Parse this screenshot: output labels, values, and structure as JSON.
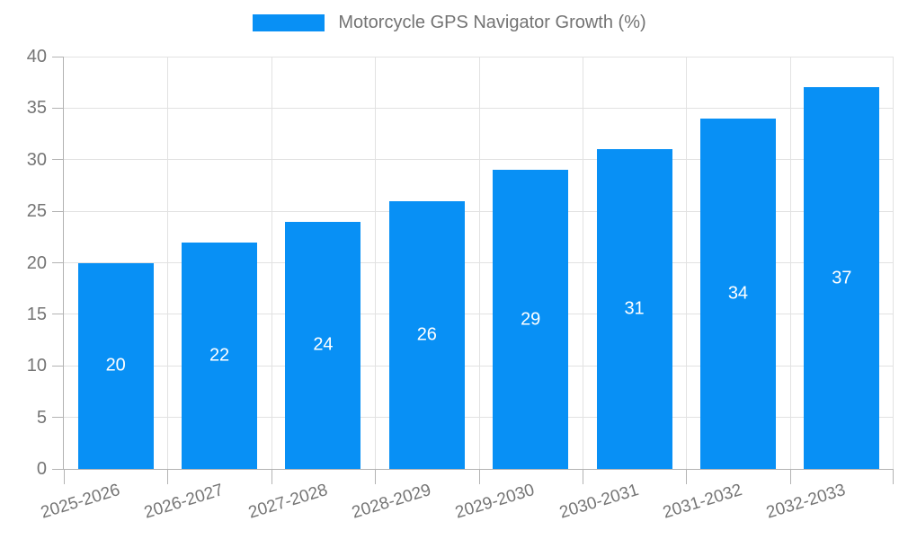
{
  "legend": {
    "label": "Motorcycle GPS Navigator Growth (%)"
  },
  "chart_data": {
    "type": "bar",
    "title": "Motorcycle GPS Navigator Growth (%)",
    "series_name": "Motorcycle GPS Navigator Growth (%)",
    "categories": [
      "2025-2026",
      "2026-2027",
      "2027-2028",
      "2028-2029",
      "2029-2030",
      "2030-2031",
      "2031-2032",
      "2032-2033"
    ],
    "values": [
      20,
      22,
      24,
      26,
      29,
      31,
      34,
      37
    ],
    "xlabel": "",
    "ylabel": "",
    "ylim": [
      0,
      40
    ],
    "yticks": [
      0,
      5,
      10,
      15,
      20,
      25,
      30,
      35,
      40
    ],
    "grid": true,
    "legend_position": "top",
    "bar_color": "#0890f5",
    "bar_label_color": "#ffffff",
    "axis_text_color": "#757575",
    "gridline_color": "#e2e2e2",
    "axis_line_color": "#b3b3b3"
  }
}
